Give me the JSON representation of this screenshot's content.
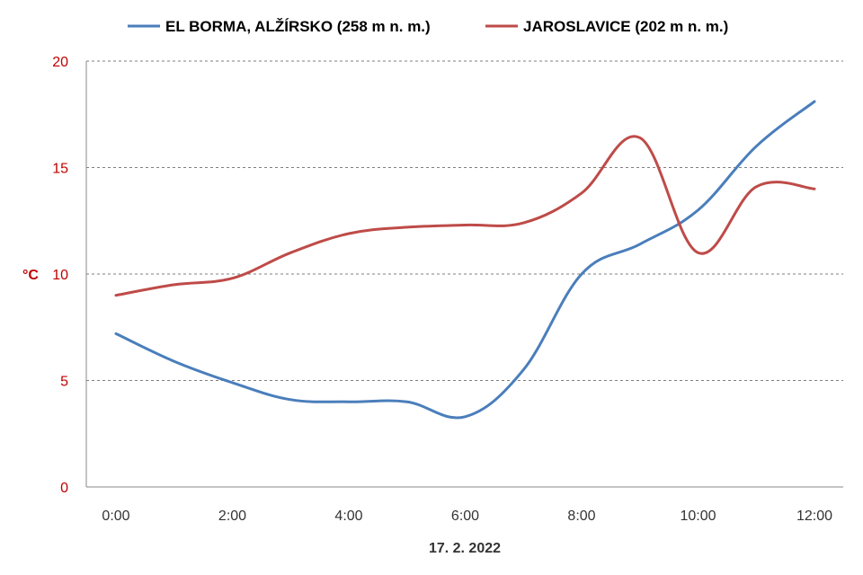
{
  "chart_data": {
    "type": "line",
    "xlabel": "17. 2. 2022",
    "ylabel": "°C",
    "categories": [
      "0:00",
      "1:00",
      "2:00",
      "3:00",
      "4:00",
      "5:00",
      "6:00",
      "7:00",
      "8:00",
      "9:00",
      "10:00",
      "11:00",
      "12:00"
    ],
    "x_tick_labels": [
      "0:00",
      "2:00",
      "4:00",
      "6:00",
      "8:00",
      "10:00",
      "12:00"
    ],
    "y_ticks": [
      0,
      5,
      10,
      15,
      20
    ],
    "ylim": [
      0,
      20
    ],
    "grid": "horizontal dashed",
    "legend_position": "top",
    "series": [
      {
        "name": "EL BORMA, ALŽÍRSKO (258 m n. m.)",
        "color": "#4a7ebb",
        "values": [
          7.2,
          5.9,
          4.9,
          4.1,
          4.0,
          4.0,
          3.3,
          5.5,
          10.0,
          11.4,
          13.0,
          16.0,
          18.1
        ]
      },
      {
        "name": "JAROSLAVICE (202 m n. m.)",
        "color": "#be4b48",
        "values": [
          9.0,
          9.5,
          9.8,
          11.0,
          11.9,
          12.2,
          12.3,
          12.4,
          13.8,
          16.4,
          11.0,
          14.1,
          14.0
        ]
      }
    ]
  }
}
